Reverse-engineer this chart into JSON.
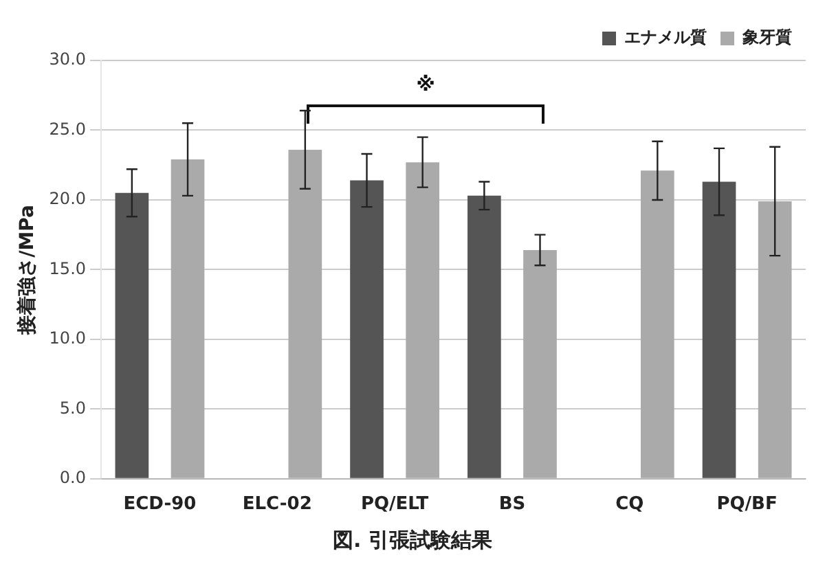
{
  "chart_data": {
    "type": "bar",
    "ylabel": "接着強さ/MPa",
    "categories": [
      "ECD-90",
      "ELC-02",
      "PQ/ELT",
      "BS",
      "CQ",
      "PQ/BF"
    ],
    "series": [
      {
        "name": "エナメル質",
        "color": "#555555",
        "values": [
          20.5,
          null,
          21.4,
          20.3,
          null,
          21.3
        ],
        "errors": [
          1.7,
          null,
          1.9,
          1.0,
          null,
          2.4
        ]
      },
      {
        "name": "象牙質",
        "color": "#aaaaaa",
        "values": [
          22.9,
          23.6,
          22.7,
          16.4,
          22.1,
          19.9
        ],
        "errors": [
          2.6,
          2.8,
          1.8,
          1.1,
          2.1,
          3.9
        ]
      }
    ],
    "ylim": [
      0,
      30
    ],
    "yticks": [
      {
        "value": 0,
        "label": "0.0"
      },
      {
        "value": 5,
        "label": "5.0"
      },
      {
        "value": 10,
        "label": "10.0"
      },
      {
        "value": 15,
        "label": "15.0"
      },
      {
        "value": 20,
        "label": "20.0"
      },
      {
        "value": 25,
        "label": "25.0"
      },
      {
        "value": 30,
        "label": "30.0"
      }
    ],
    "grid": "y",
    "legend": "top right",
    "annotations": [
      "※",
      "図. 引張試験結果"
    ]
  }
}
